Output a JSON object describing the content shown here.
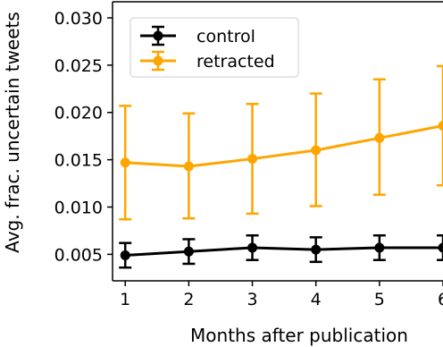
{
  "chart_data": {
    "type": "line",
    "title": "",
    "xlabel": "Months after publication",
    "ylabel": "Avg. frac. uncertain tweets",
    "x": [
      1,
      2,
      3,
      4,
      5,
      6
    ],
    "x_ticks": [
      "1",
      "2",
      "3",
      "4",
      "5",
      "6"
    ],
    "y_ticks": [
      "0.005",
      "0.010",
      "0.015",
      "0.020",
      "0.025",
      "0.030"
    ],
    "xlim": [
      0.8,
      6.0
    ],
    "ylim": [
      0.0022,
      0.0317
    ],
    "grid": false,
    "legend_position": "top-left",
    "series": [
      {
        "name": "control",
        "color": "#000000",
        "values": [
          0.0049,
          0.0053,
          0.0057,
          0.0055,
          0.0057,
          0.0057
        ],
        "err_low": [
          0.0036,
          0.004,
          0.0044,
          0.0042,
          0.0044,
          0.0044
        ],
        "err_high": [
          0.0062,
          0.0066,
          0.007,
          0.0068,
          0.007,
          0.007
        ]
      },
      {
        "name": "retracted",
        "color": "#FFA500",
        "values": [
          0.0147,
          0.0143,
          0.0151,
          0.016,
          0.0173,
          0.0186
        ],
        "err_low": [
          0.0087,
          0.0088,
          0.0093,
          0.0101,
          0.0113,
          0.0123
        ],
        "err_high": [
          0.0207,
          0.0199,
          0.0209,
          0.022,
          0.0235,
          0.0249
        ]
      }
    ]
  }
}
